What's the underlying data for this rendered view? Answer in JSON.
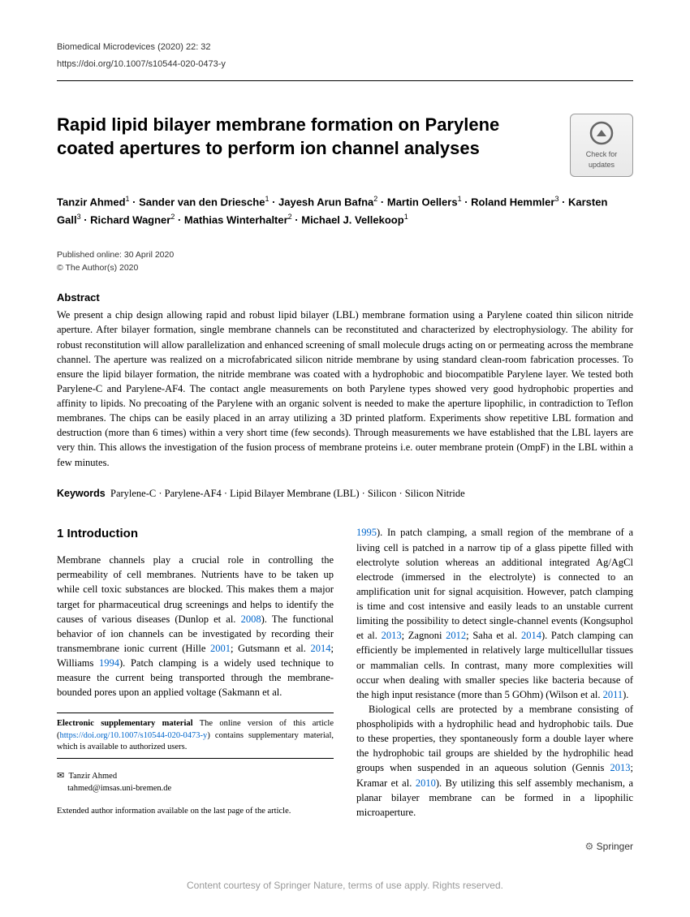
{
  "journal": "Biomedical Microdevices (2020) 22: 32",
  "doi": "https://doi.org/10.1007/s10544-020-0473-y",
  "title": "Rapid lipid bilayer membrane formation on Parylene coated apertures to perform ion channel analyses",
  "check_updates_l1": "Check for",
  "check_updates_l2": "updates",
  "authors_html": "Tanzir Ahmed<sup>1</sup> · Sander van den Driesche<sup>1</sup> · Jayesh Arun Bafna<sup>2</sup> · Martin Oellers<sup>1</sup> · Roland Hemmler<sup>3</sup> · Karsten Gall<sup>3</sup> · Richard Wagner<sup>2</sup> · Mathias Winterhalter<sup>2</sup> · Michael J. Vellekoop<sup>1</sup>",
  "pub_date": "Published online: 30 April 2020",
  "copyright": "© The Author(s) 2020",
  "abstract_label": "Abstract",
  "abstract": "We present a chip design allowing rapid and robust lipid bilayer (LBL) membrane formation using a Parylene coated thin silicon nitride aperture. After bilayer formation, single membrane channels can be reconstituted and characterized by electrophysiology. The ability for robust reconstitution will allow parallelization and enhanced screening of small molecule drugs acting on or permeating across the membrane channel. The aperture was realized on a microfabricated silicon nitride membrane by using standard clean-room fabrication processes. To ensure the lipid bilayer formation, the nitride membrane was coated with a hydrophobic and biocompatible Parylene layer. We tested both Parylene-C and Parylene-AF4. The contact angle measurements on both Parylene types showed very good hydrophobic properties and affinity to lipids. No precoating of the Parylene with an organic solvent is needed to make the aperture lipophilic, in contradiction to Teflon membranes. The chips can be easily placed in an array utilizing a 3D printed platform. Experiments show repetitive LBL formation and destruction (more than 6 times) within a very short time (few seconds). Through measurements we have established that the LBL layers are very thin. This allows the investigation of the fusion process of membrane proteins i.e. outer membrane protein (OmpF) in the LBL within a few minutes.",
  "keywords_label": "Keywords",
  "keywords": "Parylene-C · Parylene-AF4 · Lipid Bilayer Membrane (LBL) · Silicon · Silicon Nitride",
  "section1": "1 Introduction",
  "col1_p1": "Membrane channels play a crucial role in controlling the permeability of cell membranes. Nutrients have to be taken up while cell toxic substances are blocked. This makes them a major target for pharmaceutical drug screenings and helps to identify the causes of various diseases (Dunlop et al. ",
  "col1_r1": "2008",
  "col1_p2": "). The functional behavior of ion channels can be investigated by recording their transmembrane ionic current (Hille ",
  "col1_r2": "2001",
  "col1_p3": "; Gutsmann et al. ",
  "col1_r3": "2014",
  "col1_p4": "; Williams ",
  "col1_r4": "1994",
  "col1_p5": "). Patch clamping is a widely used technique to measure the current being transported through the membrane-bounded pores upon an applied voltage (Sakmann et al.",
  "supp_label": "Electronic supplementary material",
  "supp_text1": " The online version of this article (",
  "supp_link": "https://doi.org/10.1007/s10544-020-0473-y",
  "supp_text2": ") contains supplementary material, which is available to authorized users.",
  "corr_name": "Tanzir Ahmed",
  "corr_email": "tahmed@imsas.uni-bremen.de",
  "ext_author": "Extended author information available on the last page of the article.",
  "col2_r1": "1995",
  "col2_p1": "). In patch clamping, a small region of the membrane of a living cell is patched in a narrow tip of a glass pipette filled with electrolyte solution whereas an additional integrated Ag/AgCl electrode (immersed in the electrolyte) is connected to an amplification unit for signal acquisition. However, patch clamping is time and cost intensive and easily leads to an unstable current limiting the possibility to detect single-channel events (Kongsuphol et al. ",
  "col2_r2": "2013",
  "col2_p2": "; Zagnoni ",
  "col2_r3": "2012",
  "col2_p3": "; Saha et al. ",
  "col2_r4": "2014",
  "col2_p4": "). Patch clamping can efficiently be implemented in relatively large multicellullar tissues or mammalian cells. In contrast, many more complexities will occur when dealing with smaller species like bacteria because of the high input resistance (more than 5 GOhm) (Wilson et al. ",
  "col2_r5": "2011",
  "col2_p5": ").",
  "col2_p6": "Biological cells are protected by a membrane consisting of phospholipids with a hydrophilic head and hydrophobic tails. Due to these properties, they spontaneously form a double layer where the hydrophobic tail groups are shielded by the hydrophilic head groups when suspended in an aqueous solution (Gennis ",
  "col2_r6": "2013",
  "col2_p7": "; Kramar et al. ",
  "col2_r7": "2010",
  "col2_p8": "). By utilizing this self assembly mechanism, a planar bilayer membrane can be formed in a lipophilic microaperture.",
  "springer": "Springer",
  "bottom": "Content courtesy of Springer Nature, terms of use apply. Rights reserved."
}
